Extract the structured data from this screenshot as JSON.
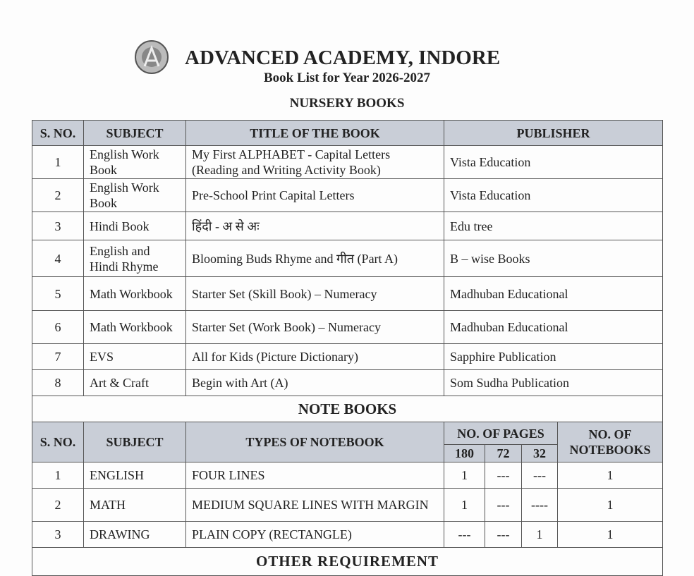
{
  "header": {
    "school": "ADVANCED ACADEMY, INDORE",
    "subtitle": "Book List for Year 2026-2027",
    "section": "NURSERY BOOKS",
    "logo_text": "ADVANCED ACADEMY"
  },
  "books": {
    "columns": [
      "S. NO.",
      "SUBJECT",
      "TITLE OF THE BOOK",
      "PUBLISHER"
    ],
    "rows": [
      [
        "1",
        "English Work Book",
        "My First ALPHABET - Capital Letters (Reading and Writing Activity Book)",
        "Vista Education"
      ],
      [
        "2",
        "English Work Book",
        "Pre-School Print Capital Letters",
        "Vista Education"
      ],
      [
        "3",
        "Hindi Book",
        "हिंदी - अ से अः",
        "Edu tree"
      ],
      [
        "4",
        "English and Hindi Rhyme",
        "Blooming Buds Rhyme and गीत (Part A)",
        "B – wise Books"
      ],
      [
        "5",
        "Math Workbook",
        "Starter Set (Skill Book) – Numeracy",
        "Madhuban Educational"
      ],
      [
        "6",
        "Math Workbook",
        "Starter Set (Work Book) – Numeracy",
        "Madhuban Educational"
      ],
      [
        "7",
        "EVS",
        "All for Kids (Picture Dictionary)",
        "Sapphire Publication"
      ],
      [
        "8",
        "Art & Craft",
        "Begin with Art (A)",
        "Som Sudha Publication"
      ]
    ]
  },
  "notebooks": {
    "section": "NOTE BOOKS",
    "columns": [
      "S. NO.",
      "SUBJECT",
      "TYPES OF NOTEBOOK",
      "NO. OF PAGES",
      "NO. OF NOTEBOOKS"
    ],
    "pages": [
      "180",
      "72",
      "32"
    ],
    "rows": [
      [
        "1",
        "ENGLISH",
        "FOUR LINES",
        "1",
        "---",
        "---",
        "1"
      ],
      [
        "2",
        "MATH",
        "MEDIUM SQUARE LINES WITH MARGIN",
        "1",
        "---",
        "----",
        "1"
      ],
      [
        "3",
        "DRAWING",
        "PLAIN COPY (RECTANGLE)",
        "---",
        "---",
        "1",
        "1"
      ]
    ]
  },
  "other": {
    "section": "OTHER REQUIREMENT"
  }
}
